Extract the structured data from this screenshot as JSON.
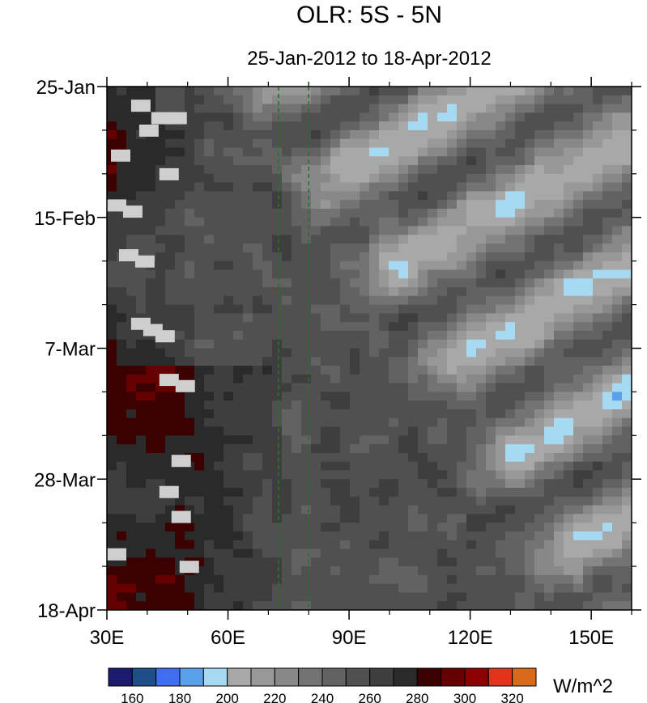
{
  "chart_data": {
    "type": "heatmap",
    "title": "OLR: 5S - 5N",
    "subtitle": "25-Jan-2012 to 18-Apr-2012",
    "x_tick_labels": [
      "30E",
      "60E",
      "90E",
      "120E",
      "150E"
    ],
    "x_tick_values": [
      30,
      60,
      90,
      120,
      150
    ],
    "xlim": [
      30,
      160
    ],
    "y_tick_labels": [
      "25-Jan",
      "15-Feb",
      "7-Mar",
      "28-Mar",
      "18-Apr"
    ],
    "y_start_date": "2012-01-25",
    "y_end_date": "2012-04-18",
    "y_reversed": true,
    "colorbar": {
      "unit_label": "W/m^2",
      "tick_labels": [
        "160",
        "180",
        "200",
        "220",
        "240",
        "260",
        "280",
        "300",
        "320"
      ],
      "levels": [
        160,
        170,
        180,
        190,
        200,
        210,
        220,
        230,
        240,
        250,
        260,
        270,
        280,
        290,
        300,
        310,
        320
      ],
      "colors": [
        "#1a1a6e",
        "#1c4f8a",
        "#3f6ff0",
        "#5aa0ea",
        "#a6d9f2",
        "#a8a8a8",
        "#989898",
        "#888888",
        "#737373",
        "#626262",
        "#505050",
        "#3e3e3e",
        "#2a2a2a",
        "#3c0000",
        "#660000",
        "#8c0000",
        "#e4321c",
        "#d76b1a"
      ]
    },
    "reference_lines": {
      "x": [
        72.5,
        80
      ],
      "color": "#1f7a1f",
      "style": "dashed"
    },
    "missing_color": "#cfcfcf"
  }
}
